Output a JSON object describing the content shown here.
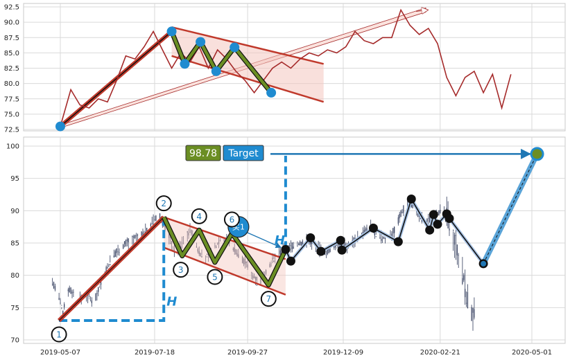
{
  "chart_data": [
    {
      "type": "line",
      "panel": "top",
      "ylim": [
        72,
        93
      ],
      "yticks": [
        "72.5",
        "75.0",
        "77.5",
        "80.0",
        "82.5",
        "85.0",
        "87.5",
        "90.0",
        "92.5"
      ],
      "grid": true,
      "series": [
        {
          "color": "#a52a2a",
          "x": [
            "2019-05-07",
            "2019-05-15",
            "2019-05-22",
            "2019-05-29",
            "2019-06-05",
            "2019-06-12",
            "2019-06-19",
            "2019-06-26",
            "2019-07-03",
            "2019-07-10",
            "2019-07-17",
            "2019-07-24",
            "2019-07-31",
            "2019-08-07",
            "2019-08-14",
            "2019-08-21",
            "2019-08-28",
            "2019-09-04",
            "2019-09-11",
            "2019-09-18",
            "2019-09-25",
            "2019-10-02",
            "2019-10-09",
            "2019-10-16",
            "2019-10-23",
            "2019-10-30",
            "2019-11-06",
            "2019-11-13",
            "2019-11-20",
            "2019-11-27",
            "2019-12-04",
            "2019-12-11",
            "2019-12-18",
            "2019-12-25",
            "2020-01-01",
            "2020-01-08",
            "2020-01-15",
            "2020-01-22",
            "2020-01-29",
            "2020-02-05",
            "2020-02-12",
            "2020-02-19",
            "2020-02-26",
            "2020-03-04",
            "2020-03-11",
            "2020-03-18",
            "2020-03-25",
            "2020-04-01",
            "2020-04-08",
            "2020-04-15"
          ],
          "values": [
            73.0,
            79.0,
            76.5,
            76.0,
            77.5,
            77.0,
            80.5,
            84.5,
            84.0,
            86.0,
            88.5,
            85.5,
            82.5,
            85.0,
            83.5,
            86.0,
            82.5,
            85.5,
            84.0,
            82.0,
            80.5,
            78.5,
            80.5,
            82.5,
            83.5,
            82.5,
            84.0,
            85.0,
            84.5,
            85.5,
            85.0,
            86.0,
            88.5,
            87.0,
            86.5,
            87.5,
            87.5,
            92.0,
            89.5,
            88.0,
            89.0,
            86.5,
            81.0,
            78.0,
            81.0,
            82.0,
            78.5,
            81.5,
            76.0,
            81.5
          ]
        }
      ],
      "annotations": {
        "trend_start": {
          "x": "2019-05-07",
          "y": 73.0
        },
        "trend_peak": {
          "x": "2019-07-31",
          "y": 88.5
        },
        "arrow_end": {
          "x": "2020-02-10",
          "y": 92.0
        },
        "pattern_points": [
          {
            "x": "2019-07-31",
            "y": 88.5
          },
          {
            "x": "2019-08-10",
            "y": 83.2
          },
          {
            "x": "2019-08-22",
            "y": 86.8
          },
          {
            "x": "2019-09-03",
            "y": 82.0
          },
          {
            "x": "2019-09-17",
            "y": 85.9
          },
          {
            "x": "2019-10-15",
            "y": 78.5
          }
        ]
      }
    },
    {
      "type": "candlestick",
      "panel": "bottom",
      "ylim": [
        69.5,
        101.5
      ],
      "yticks": [
        "70",
        "75",
        "80",
        "85",
        "90",
        "95",
        "100"
      ],
      "xticks": [
        "2019-05-07",
        "2019-07-18",
        "2019-09-27",
        "2019-12-09",
        "2020-02-21",
        "2020-05-01"
      ],
      "grid": true,
      "price_path": {
        "x": [
          "2019-05-01",
          "2019-05-06",
          "2019-05-09",
          "2019-05-12",
          "2019-05-16",
          "2019-05-20",
          "2019-05-26",
          "2019-06-02",
          "2019-06-09",
          "2019-06-16",
          "2019-06-23",
          "2019-06-30",
          "2019-07-07",
          "2019-07-14",
          "2019-07-21",
          "2019-07-28",
          "2019-08-03",
          "2019-08-08",
          "2019-08-14",
          "2019-08-20",
          "2019-08-26",
          "2019-09-01",
          "2019-09-07",
          "2019-09-13",
          "2019-09-19",
          "2019-09-25",
          "2019-10-01",
          "2019-10-07",
          "2019-10-13",
          "2019-10-19",
          "2019-10-25",
          "2019-10-31",
          "2019-11-06",
          "2019-11-12",
          "2019-11-18",
          "2019-11-24",
          "2019-11-30",
          "2019-12-06",
          "2019-12-12",
          "2019-12-18",
          "2019-12-24",
          "2019-12-30",
          "2020-01-05",
          "2020-01-11",
          "2020-01-17",
          "2020-01-23",
          "2020-01-29",
          "2020-02-04",
          "2020-02-10",
          "2020-02-16",
          "2020-02-22",
          "2020-02-28",
          "2020-03-05",
          "2020-03-09",
          "2020-03-13",
          "2020-03-18"
        ],
        "values": [
          79.0,
          76.5,
          74.0,
          78.0,
          77.5,
          76.0,
          77.0,
          76.0,
          80.0,
          83.0,
          84.5,
          85.5,
          86.0,
          87.5,
          89.5,
          86.5,
          83.0,
          85.0,
          87.0,
          84.0,
          82.5,
          84.0,
          86.0,
          85.0,
          83.5,
          82.0,
          80.0,
          79.0,
          81.5,
          83.0,
          84.0,
          84.5,
          85.0,
          85.5,
          84.5,
          83.5,
          84.0,
          85.0,
          84.5,
          85.5,
          86.5,
          87.5,
          86.0,
          85.5,
          87.0,
          90.0,
          91.5,
          89.5,
          88.0,
          89.5,
          90.0,
          88.5,
          84.0,
          80.0,
          76.0,
          73.5
        ]
      },
      "numbered_points": [
        {
          "label": "1",
          "x": "2019-05-06",
          "y": 73.0
        },
        {
          "label": "2",
          "x": "2019-07-25",
          "y": 89.0
        },
        {
          "label": "3",
          "x": "2019-08-08",
          "y": 83.0
        },
        {
          "label": "4",
          "x": "2019-08-21",
          "y": 87.0
        },
        {
          "label": "5",
          "x": "2019-09-02",
          "y": 82.0
        },
        {
          "label": "6",
          "x": "2019-09-15",
          "y": 86.5
        },
        {
          "label": "7",
          "x": "2019-10-13",
          "y": 78.5
        }
      ],
      "black_markers": [
        {
          "x": "2019-10-26",
          "y": 84.0
        },
        {
          "x": "2019-10-30",
          "y": 82.2
        },
        {
          "x": "2019-11-14",
          "y": 85.8
        },
        {
          "x": "2019-11-22",
          "y": 83.7
        },
        {
          "x": "2019-12-07",
          "y": 85.4
        },
        {
          "x": "2019-12-08",
          "y": 83.9
        },
        {
          "x": "2020-01-01",
          "y": 87.3
        },
        {
          "x": "2020-01-20",
          "y": 85.2
        },
        {
          "x": "2020-01-30",
          "y": 91.8
        },
        {
          "x": "2020-02-13",
          "y": 87.0
        },
        {
          "x": "2020-02-16",
          "y": 89.4
        },
        {
          "x": "2020-02-19",
          "y": 87.9
        },
        {
          "x": "2020-02-26",
          "y": 89.5
        },
        {
          "x": "2020-02-28",
          "y": 88.8
        },
        {
          "x": "2020-03-25",
          "y": 81.8
        }
      ],
      "target": {
        "x": "2020-05-05",
        "y": 98.78
      },
      "labels": {
        "target_value": "98.78",
        "target_text": "Target",
        "buy_label": "买1",
        "height_label": "H"
      }
    }
  ],
  "colors": {
    "price_line": "#a52a2a",
    "trend_red": "#c0392b",
    "zigzag_green": "#6b8e23",
    "blue_accent": "#1f8bd0",
    "channel_fill": "#f4c7bf"
  }
}
